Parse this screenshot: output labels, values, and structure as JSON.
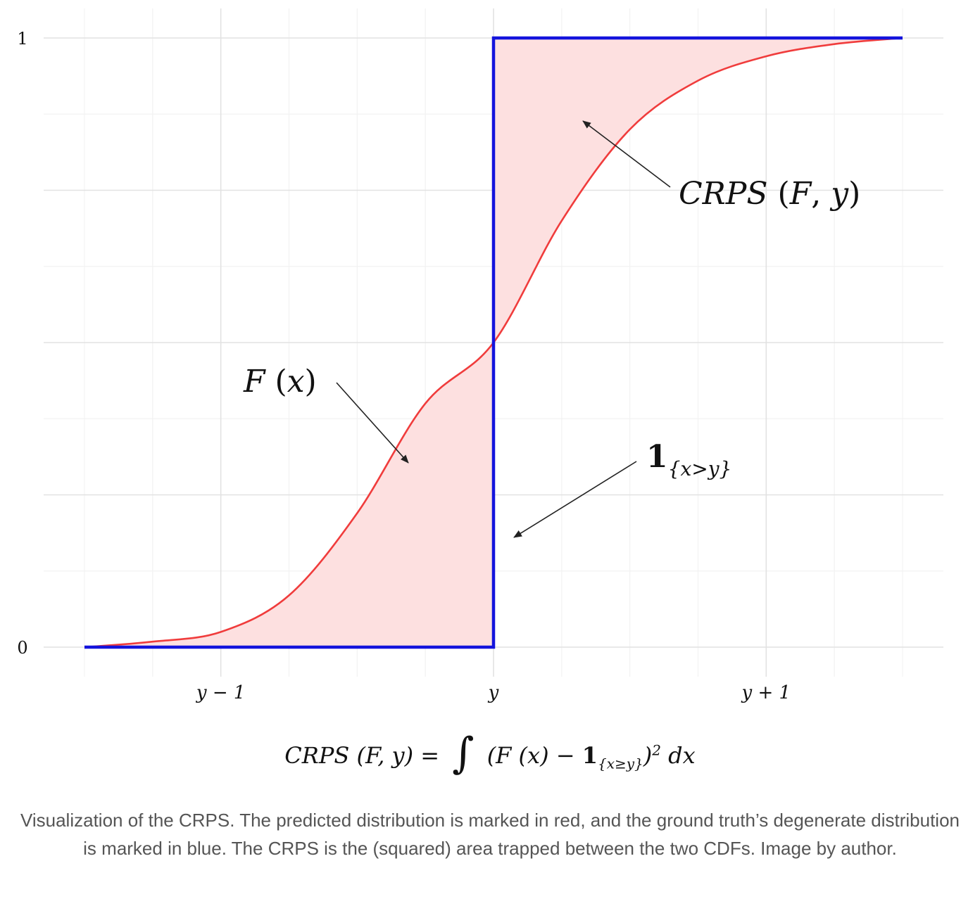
{
  "chart_data": {
    "type": "line",
    "xlabel": "",
    "ylabel": "",
    "xlim": [
      -1.5,
      1.5
    ],
    "ylim": [
      0,
      1
    ],
    "grid": true,
    "legend": "none",
    "x_ticks": [
      {
        "value": -1,
        "label": "y − 1"
      },
      {
        "value": 0,
        "label": "y"
      },
      {
        "value": 1,
        "label": "y + 1"
      }
    ],
    "y_ticks": [
      {
        "value": 0,
        "label": "0"
      },
      {
        "value": 1,
        "label": "1"
      }
    ],
    "series": [
      {
        "color": "#f03c3c",
        "x": [
          -1.5,
          -1.25,
          -1.0,
          -0.75,
          -0.5,
          -0.25,
          0.0,
          0.25,
          0.5,
          0.75,
          1.0,
          1.25,
          1.5
        ],
        "y": [
          0.0,
          0.009,
          0.025,
          0.085,
          0.22,
          0.4,
          0.5,
          0.7,
          0.85,
          0.93,
          0.97,
          0.99,
          1.0
        ]
      },
      {
        "color": "#1414dc",
        "x": [
          -1.5,
          0.0,
          0.0,
          1.5
        ],
        "y": [
          0.0,
          0.0,
          1.0,
          1.0
        ]
      }
    ],
    "fill_color": "#fde0e0",
    "annotations": [
      {
        "parts": [
          {
            "text": "CRPS",
            "style": "italic"
          },
          {
            "text": " (",
            "style": "normal"
          },
          {
            "text": "F",
            "style": "italic"
          },
          {
            "text": ", ",
            "style": "normal"
          },
          {
            "text": "y",
            "style": "italic"
          },
          {
            "text": ")",
            "style": "normal"
          }
        ]
      },
      {
        "parts": [
          {
            "text": "F",
            "style": "italic"
          },
          {
            "text": " (",
            "style": "normal"
          },
          {
            "text": "x",
            "style": "italic"
          },
          {
            "text": ")",
            "style": "normal"
          }
        ]
      },
      {
        "parts": [
          {
            "text": "1",
            "style": "bold"
          },
          {
            "text": "{x>y}",
            "style": "subscript"
          }
        ]
      }
    ]
  },
  "formula": {
    "lhs": "CRPS (F, y) =",
    "integral": "∫",
    "body_start": "(F (x) −",
    "indicator": "1",
    "indicator_sub": "{x≥y}",
    "close": ")",
    "power": "2",
    "dx": "dx"
  },
  "caption": "Visualization of the CRPS. The predicted distribution is marked in red, and the ground truth’s degenerate distribution is marked in blue. The CRPS is the (squared) area trapped between the two CDFs. Image by author."
}
